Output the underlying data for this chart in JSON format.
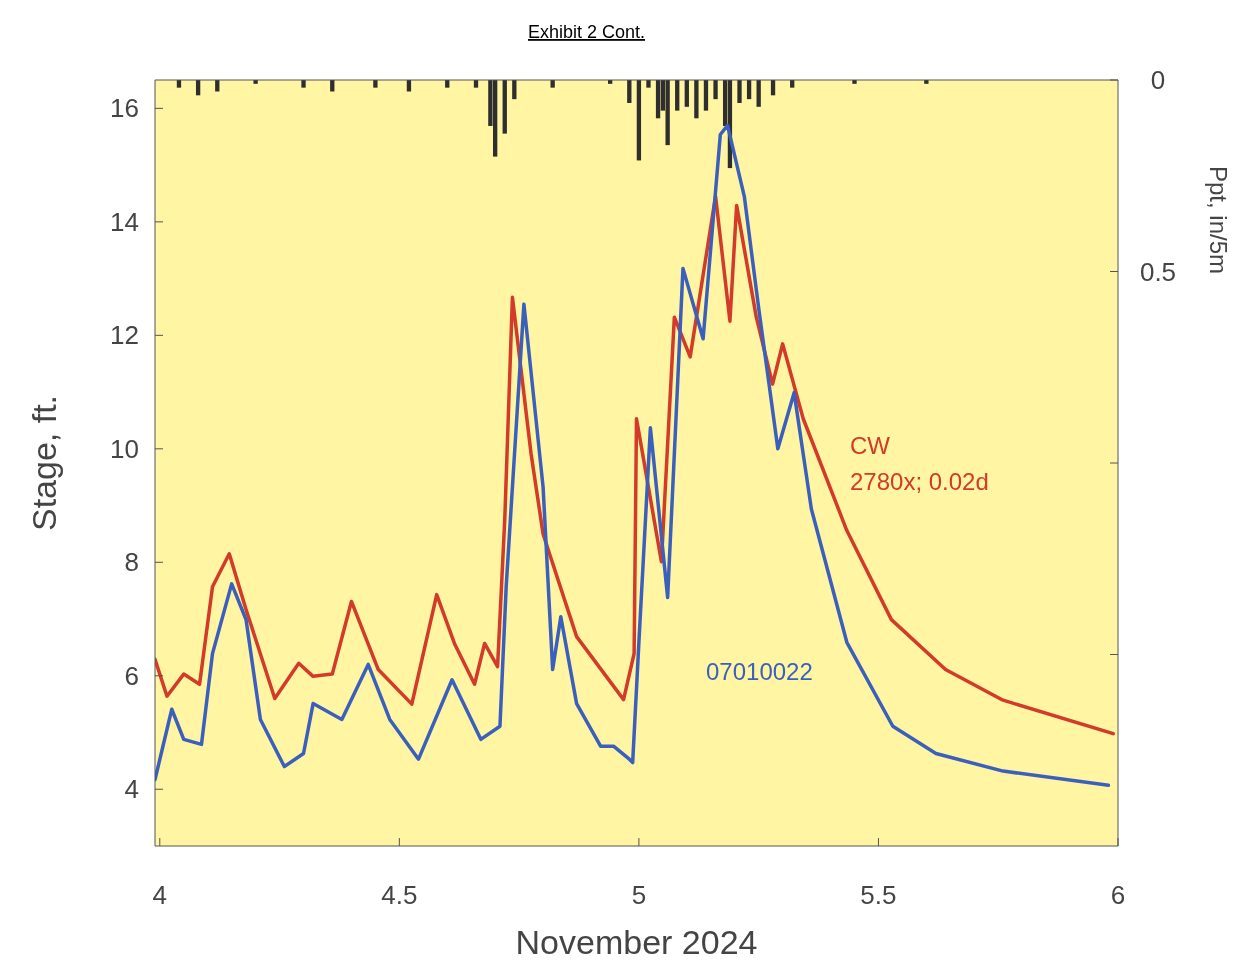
{
  "chart_data": {
    "type": "line",
    "title": "Exhibit 2 Cont.",
    "xlabel": "November 2024",
    "ylabel": "Stage, ft.",
    "y2label": "Ppt, in/5m",
    "xlim": [
      3.99,
      6
    ],
    "xticks": [
      4,
      4.5,
      5,
      5.5,
      6
    ],
    "ylim": [
      3,
      16.5
    ],
    "yticks": [
      4,
      6,
      8,
      10,
      12,
      14,
      16
    ],
    "y2lim": [
      2,
      0
    ],
    "y2ticks": [
      0,
      0.5,
      {
        "value": 1,
        "label": null
      },
      {
        "value": 1.5,
        "label": null
      }
    ],
    "grid": false,
    "annotations": [
      "2780x; 0.02d"
    ],
    "series": [
      {
        "type": "bar",
        "axis": "y2",
        "color": "#2e2e2e",
        "x": [
          4.04,
          4.08,
          4.12,
          4.2,
          4.3,
          4.36,
          4.45,
          4.52,
          4.6,
          4.66,
          4.69,
          4.7,
          4.72,
          4.74,
          4.82,
          4.94,
          4.98,
          5.0,
          5.02,
          5.04,
          5.05,
          5.06,
          5.08,
          5.1,
          5.12,
          5.14,
          5.16,
          5.18,
          5.19,
          5.21,
          5.23,
          5.25,
          5.28,
          5.32,
          5.45,
          5.6
        ],
        "values": [
          0.02,
          0.04,
          0.03,
          0.01,
          0.02,
          0.03,
          0.02,
          0.03,
          0.02,
          0.02,
          0.12,
          0.2,
          0.14,
          0.05,
          0.02,
          0.01,
          0.06,
          0.21,
          0.02,
          0.1,
          0.08,
          0.17,
          0.08,
          0.07,
          0.1,
          0.08,
          0.05,
          0.12,
          0.23,
          0.06,
          0.05,
          0.07,
          0.04,
          0.02,
          0.01,
          0.01
        ]
      },
      {
        "name": "CW",
        "color": "#d23a2a",
        "x": [
          3.99,
          4.015,
          4.05,
          4.083,
          4.11,
          4.145,
          4.18,
          4.24,
          4.29,
          4.32,
          4.36,
          4.4,
          4.456,
          4.526,
          4.578,
          4.615,
          4.657,
          4.678,
          4.705,
          4.72,
          4.736,
          4.775,
          4.8,
          4.87,
          4.968,
          4.99,
          4.995,
          5.047,
          5.074,
          5.107,
          5.16,
          5.19,
          5.204,
          5.245,
          5.279,
          5.3,
          5.343,
          5.434,
          5.527,
          5.64,
          5.76,
          5.99
        ],
        "values": [
          6.29,
          5.64,
          6.03,
          5.85,
          7.57,
          8.15,
          7.17,
          5.6,
          6.22,
          5.99,
          6.03,
          7.31,
          6.11,
          5.5,
          7.43,
          6.57,
          5.85,
          6.57,
          6.16,
          8.75,
          12.67,
          9.91,
          8.5,
          6.69,
          5.58,
          6.39,
          10.53,
          8.01,
          12.32,
          11.62,
          14.45,
          12.25,
          14.29,
          12.32,
          11.14,
          11.85,
          10.53,
          8.56,
          6.99,
          6.11,
          5.57,
          4.98
        ]
      },
      {
        "name": "07010022",
        "color": "#3b5fbd",
        "x": [
          3.99,
          4.025,
          4.05,
          4.087,
          4.11,
          4.15,
          4.18,
          4.21,
          4.26,
          4.3,
          4.32,
          4.38,
          4.435,
          4.48,
          4.54,
          4.61,
          4.67,
          4.71,
          4.723,
          4.76,
          4.8,
          4.82,
          4.837,
          4.87,
          4.92,
          4.947,
          4.98,
          4.987,
          5.0,
          5.024,
          5.06,
          5.092,
          5.134,
          5.17,
          5.185,
          5.22,
          5.25,
          5.29,
          5.324,
          5.36,
          5.434,
          5.53,
          5.62,
          5.76,
          5.98
        ],
        "values": [
          4.17,
          5.41,
          4.88,
          4.79,
          6.39,
          7.62,
          6.99,
          5.23,
          4.4,
          4.63,
          5.51,
          5.23,
          6.2,
          5.23,
          4.53,
          5.93,
          4.88,
          5.11,
          7.57,
          12.55,
          9.33,
          6.11,
          7.04,
          5.51,
          4.76,
          4.76,
          4.53,
          4.47,
          6.59,
          10.37,
          7.38,
          13.18,
          11.94,
          15.54,
          15.7,
          14.45,
          12.48,
          10.0,
          10.99,
          8.94,
          6.59,
          5.11,
          4.63,
          4.32,
          4.07
        ]
      }
    ]
  }
}
